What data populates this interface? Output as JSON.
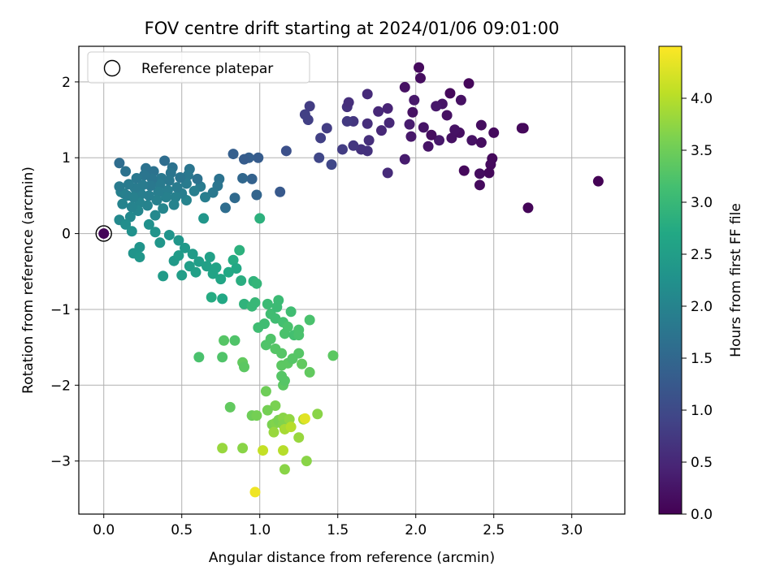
{
  "chart_data": {
    "type": "scatter",
    "title": "FOV centre drift starting at 2024/01/06 09:01:00",
    "xlabel": "Angular distance from reference (arcmin)",
    "ylabel": "Rotation from reference (arcmin)",
    "xlim": [
      -0.16,
      3.34
    ],
    "ylim": [
      -3.7,
      2.47
    ],
    "xticks": [
      {
        "v": 0,
        "label": "0.0"
      },
      {
        "v": 0.5,
        "label": "0.5"
      },
      {
        "v": 1,
        "label": "1.0"
      },
      {
        "v": 1.5,
        "label": "1.5"
      },
      {
        "v": 2,
        "label": "2.0"
      },
      {
        "v": 2.5,
        "label": "2.5"
      },
      {
        "v": 3,
        "label": "3.0"
      }
    ],
    "yticks": [
      {
        "v": 2,
        "label": "2"
      },
      {
        "v": 1,
        "label": "1"
      },
      {
        "v": 0,
        "label": "0"
      },
      {
        "v": -1,
        "label": "−1"
      },
      {
        "v": -2,
        "label": "−2"
      },
      {
        "v": -3,
        "label": "−3"
      }
    ],
    "grid": true,
    "legend": {
      "placement": "top-left",
      "entries": [
        "Reference platepar"
      ]
    },
    "colorbar": {
      "label": "Hours from first FF file",
      "colormap": "viridis",
      "range": [
        0,
        4.5
      ],
      "ticks": [
        {
          "v": 0,
          "label": "0.0"
        },
        {
          "v": 0.5,
          "label": "0.5"
        },
        {
          "v": 1,
          "label": "1.0"
        },
        {
          "v": 1.5,
          "label": "1.5"
        },
        {
          "v": 2,
          "label": "2.0"
        },
        {
          "v": 2.5,
          "label": "2.5"
        },
        {
          "v": 3,
          "label": "3.0"
        },
        {
          "v": 3.5,
          "label": "3.5"
        },
        {
          "v": 4,
          "label": "4.0"
        }
      ]
    },
    "reference_point": {
      "x": 0,
      "y": 0
    },
    "points": [
      [
        0,
        0,
        0.05
      ],
      [
        2.02,
        2.19,
        0.12
      ],
      [
        2.03,
        2.05,
        0.15
      ],
      [
        2.22,
        1.85,
        0.1
      ],
      [
        2.34,
        1.98,
        0.08
      ],
      [
        2.29,
        1.76,
        0.2
      ],
      [
        2.17,
        1.71,
        0.25
      ],
      [
        2.69,
        1.39,
        0.05
      ],
      [
        2.68,
        1.39,
        0.1
      ],
      [
        2.5,
        1.33,
        0.12
      ],
      [
        2.42,
        1.43,
        0.15
      ],
      [
        2.28,
        1.33,
        0.18
      ],
      [
        2.36,
        1.23,
        0.22
      ],
      [
        2.23,
        1.26,
        0.2
      ],
      [
        2.15,
        1.23,
        0.3
      ],
      [
        2.08,
        1.15,
        0.25
      ],
      [
        2.1,
        1.3,
        0.15
      ],
      [
        2.05,
        1.4,
        0.25
      ],
      [
        1.99,
        1.76,
        0.3
      ],
      [
        1.93,
        1.93,
        0.2
      ],
      [
        1.98,
        1.6,
        0.2
      ],
      [
        3.17,
        0.69,
        0.02
      ],
      [
        2.72,
        0.34,
        0.05
      ],
      [
        2.49,
        0.99,
        0.1
      ],
      [
        2.48,
        0.91,
        0.12
      ],
      [
        2.47,
        0.8,
        0.1
      ],
      [
        2.41,
        0.79,
        0.15
      ],
      [
        2.41,
        0.64,
        0.12
      ],
      [
        2.31,
        0.83,
        0.1
      ],
      [
        2.42,
        1.2,
        0.15
      ],
      [
        2.2,
        1.56,
        0.2
      ],
      [
        2.25,
        1.37,
        0.22
      ],
      [
        2.13,
        1.68,
        0.3
      ],
      [
        1.96,
        1.44,
        0.35
      ],
      [
        1.97,
        1.28,
        0.3
      ],
      [
        1.93,
        0.98,
        0.35
      ],
      [
        1.82,
        1.65,
        0.45
      ],
      [
        1.83,
        1.46,
        0.5
      ],
      [
        1.78,
        1.36,
        0.5
      ],
      [
        1.76,
        1.61,
        0.5
      ],
      [
        1.69,
        1.84,
        0.55
      ],
      [
        1.69,
        1.45,
        0.6
      ],
      [
        1.7,
        1.23,
        0.6
      ],
      [
        1.69,
        1.09,
        0.65
      ],
      [
        1.65,
        1.11,
        0.65
      ],
      [
        1.6,
        1.16,
        0.7
      ],
      [
        1.6,
        1.48,
        0.7
      ],
      [
        1.56,
        1.48,
        0.75
      ],
      [
        1.56,
        1.67,
        0.65
      ],
      [
        1.53,
        1.11,
        0.8
      ],
      [
        1.43,
        1.39,
        0.8
      ],
      [
        1.39,
        1.26,
        0.85
      ],
      [
        1.32,
        1.68,
        0.8
      ],
      [
        1.31,
        1.5,
        0.85
      ],
      [
        1.29,
        1.57,
        0.85
      ],
      [
        1.38,
        1.0,
        0.95
      ],
      [
        1.46,
        0.91,
        0.95
      ],
      [
        1.82,
        0.8,
        0.55
      ],
      [
        1.57,
        1.73,
        0.6
      ],
      [
        1.17,
        1.09,
        1.1
      ],
      [
        1.13,
        0.55,
        1.25
      ],
      [
        0.99,
        1.0,
        1.3
      ],
      [
        0.93,
        1.0,
        1.35
      ],
      [
        0.9,
        0.98,
        1.3
      ],
      [
        0.83,
        1.05,
        1.35
      ],
      [
        0.95,
        0.72,
        1.4
      ],
      [
        0.98,
        0.51,
        1.45
      ],
      [
        0.89,
        0.73,
        1.5
      ],
      [
        0.84,
        0.47,
        1.55
      ],
      [
        0.78,
        0.34,
        1.6
      ],
      [
        1.0,
        0.2,
        2.85
      ],
      [
        0.74,
        0.72,
        1.7
      ],
      [
        0.73,
        0.63,
        1.75
      ],
      [
        0.7,
        0.54,
        1.8
      ],
      [
        0.65,
        0.48,
        1.9
      ],
      [
        0.62,
        0.62,
        1.85
      ],
      [
        0.6,
        0.72,
        1.7
      ],
      [
        0.58,
        0.56,
        1.9
      ],
      [
        0.55,
        0.85,
        1.75
      ],
      [
        0.54,
        0.77,
        1.8
      ],
      [
        0.53,
        0.66,
        1.85
      ],
      [
        0.53,
        0.44,
        2.0
      ],
      [
        0.5,
        0.53,
        1.9
      ],
      [
        0.49,
        0.74,
        1.75
      ],
      [
        0.47,
        0.61,
        1.85
      ],
      [
        0.46,
        0.48,
        1.95
      ],
      [
        0.45,
        0.38,
        2.0
      ],
      [
        0.44,
        0.87,
        1.7
      ],
      [
        0.43,
        0.8,
        1.75
      ],
      [
        0.42,
        0.7,
        1.8
      ],
      [
        0.41,
        0.57,
        1.9
      ],
      [
        0.4,
        0.48,
        1.95
      ],
      [
        0.39,
        0.96,
        1.6
      ],
      [
        0.38,
        0.33,
        2.05
      ],
      [
        0.37,
        0.73,
        1.8
      ],
      [
        0.36,
        0.65,
        1.85
      ],
      [
        0.35,
        0.55,
        1.9
      ],
      [
        0.34,
        0.44,
        1.95
      ],
      [
        0.33,
        0.24,
        2.1
      ],
      [
        0.32,
        0.82,
        1.7
      ],
      [
        0.31,
        0.72,
        1.75
      ],
      [
        0.3,
        0.63,
        1.8
      ],
      [
        0.29,
        0.5,
        1.9
      ],
      [
        0.28,
        0.37,
        2.0
      ],
      [
        0.27,
        0.86,
        1.7
      ],
      [
        0.26,
        0.77,
        1.75
      ],
      [
        0.25,
        0.64,
        1.85
      ],
      [
        0.24,
        0.52,
        1.9
      ],
      [
        0.23,
        0.41,
        2.0
      ],
      [
        0.22,
        0.3,
        2.05
      ],
      [
        0.21,
        0.73,
        1.8
      ],
      [
        0.2,
        0.6,
        1.85
      ],
      [
        0.19,
        0.48,
        1.95
      ],
      [
        0.18,
        0.35,
        2.0
      ],
      [
        0.17,
        0.22,
        2.1
      ],
      [
        0.16,
        0.65,
        1.85
      ],
      [
        0.15,
        0.5,
        1.95
      ],
      [
        0.14,
        0.82,
        1.7
      ],
      [
        0.13,
        0.53,
        1.9
      ],
      [
        0.12,
        0.39,
        2.0
      ],
      [
        0.11,
        0.55,
        1.95
      ],
      [
        0.1,
        0.93,
        1.6
      ],
      [
        0.1,
        0.62,
        1.85
      ],
      [
        0.1,
        0.18,
        2.1
      ],
      [
        0.14,
        0.12,
        2.2
      ],
      [
        0.18,
        0.03,
        2.25
      ],
      [
        0.23,
        -0.18,
        2.3
      ],
      [
        0.19,
        -0.26,
        2.3
      ],
      [
        0.23,
        -0.31,
        2.35
      ],
      [
        0.29,
        0.12,
        2.25
      ],
      [
        0.33,
        0.02,
        2.3
      ],
      [
        0.36,
        -0.12,
        2.35
      ],
      [
        0.38,
        -0.56,
        2.45
      ],
      [
        0.42,
        -0.02,
        2.3
      ],
      [
        0.45,
        -0.36,
        2.4
      ],
      [
        0.48,
        -0.09,
        2.35
      ],
      [
        0.48,
        -0.29,
        2.45
      ],
      [
        0.5,
        -0.55,
        2.5
      ],
      [
        0.52,
        -0.19,
        2.4
      ],
      [
        0.55,
        -0.43,
        2.5
      ],
      [
        0.57,
        -0.27,
        2.45
      ],
      [
        0.59,
        -0.51,
        2.55
      ],
      [
        0.61,
        -0.37,
        2.5
      ],
      [
        0.64,
        0.2,
        2.35
      ],
      [
        0.66,
        -0.43,
        2.55
      ],
      [
        0.68,
        -0.31,
        2.55
      ],
      [
        0.7,
        -0.53,
        2.6
      ],
      [
        0.69,
        -0.84,
        2.75
      ],
      [
        0.72,
        -0.45,
        2.6
      ],
      [
        0.75,
        -0.6,
        2.65
      ],
      [
        0.76,
        -0.86,
        2.7
      ],
      [
        0.8,
        -0.51,
        2.7
      ],
      [
        0.83,
        -0.35,
        2.75
      ],
      [
        0.85,
        -0.46,
        2.7
      ],
      [
        0.87,
        -0.22,
        2.85
      ],
      [
        0.88,
        -0.62,
        2.8
      ],
      [
        0.9,
        -0.93,
        2.9
      ],
      [
        0.95,
        -0.96,
        3.0
      ],
      [
        0.96,
        -0.63,
        2.9
      ],
      [
        0.98,
        -0.66,
        2.95
      ],
      [
        0.97,
        -0.91,
        3.0
      ],
      [
        0.99,
        -1.24,
        3.1
      ],
      [
        1.03,
        -1.19,
        3.1
      ],
      [
        1.05,
        -0.93,
        3.05
      ],
      [
        1.07,
        -1.06,
        3.1
      ],
      [
        1.1,
        -1.12,
        3.1
      ],
      [
        1.11,
        -0.97,
        3.05
      ],
      [
        1.12,
        -0.88,
        3.05
      ],
      [
        1.15,
        -1.17,
        3.15
      ],
      [
        1.16,
        -1.32,
        3.2
      ],
      [
        1.18,
        -1.23,
        3.2
      ],
      [
        1.2,
        -1.03,
        3.1
      ],
      [
        1.22,
        -1.34,
        3.15
      ],
      [
        1.25,
        -1.27,
        3.2
      ],
      [
        1.25,
        -1.34,
        3.2
      ],
      [
        1.32,
        -1.14,
        3.2
      ],
      [
        1.04,
        -1.47,
        3.25
      ],
      [
        1.07,
        -1.39,
        3.25
      ],
      [
        1.1,
        -1.52,
        3.3
      ],
      [
        1.14,
        -1.58,
        3.3
      ],
      [
        1.14,
        -1.74,
        3.35
      ],
      [
        1.14,
        -1.88,
        3.3
      ],
      [
        1.15,
        -2.0,
        3.35
      ],
      [
        1.16,
        -1.94,
        3.3
      ],
      [
        1.18,
        -1.71,
        3.35
      ],
      [
        1.21,
        -1.65,
        3.3
      ],
      [
        1.25,
        -1.58,
        3.3
      ],
      [
        1.27,
        -1.72,
        3.4
      ],
      [
        1.32,
        -1.83,
        3.4
      ],
      [
        1.47,
        -1.61,
        3.35
      ],
      [
        0.61,
        -1.63,
        3.2
      ],
      [
        0.76,
        -1.63,
        3.25
      ],
      [
        0.77,
        -1.41,
        3.3
      ],
      [
        0.84,
        -1.41,
        3.25
      ],
      [
        0.89,
        -1.7,
        3.4
      ],
      [
        0.9,
        -1.76,
        3.35
      ],
      [
        1.04,
        -2.08,
        3.5
      ],
      [
        0.81,
        -2.29,
        3.4
      ],
      [
        1.1,
        -2.27,
        3.6
      ],
      [
        1.05,
        -2.33,
        3.55
      ],
      [
        0.95,
        -2.4,
        3.5
      ],
      [
        0.98,
        -2.4,
        3.55
      ],
      [
        1.08,
        -2.52,
        3.6
      ],
      [
        1.1,
        -2.5,
        3.65
      ],
      [
        1.12,
        -2.46,
        3.6
      ],
      [
        1.15,
        -2.43,
        3.7
      ],
      [
        1.15,
        -2.52,
        3.65
      ],
      [
        1.19,
        -2.45,
        3.75
      ],
      [
        1.09,
        -2.62,
        3.8
      ],
      [
        1.16,
        -2.58,
        3.9
      ],
      [
        1.25,
        -2.69,
        3.8
      ],
      [
        1.28,
        -2.45,
        3.9
      ],
      [
        1.37,
        -2.38,
        3.7
      ],
      [
        1.3,
        -3.0,
        3.7
      ],
      [
        1.15,
        -2.86,
        4.0
      ],
      [
        1.02,
        -2.86,
        4.1
      ],
      [
        0.89,
        -2.83,
        3.7
      ],
      [
        0.76,
        -2.83,
        3.8
      ],
      [
        1.16,
        -3.11,
        3.7
      ],
      [
        0.97,
        -3.41,
        4.4
      ],
      [
        1.29,
        -2.44,
        4.3
      ],
      [
        1.2,
        -2.55,
        4.0
      ]
    ]
  }
}
